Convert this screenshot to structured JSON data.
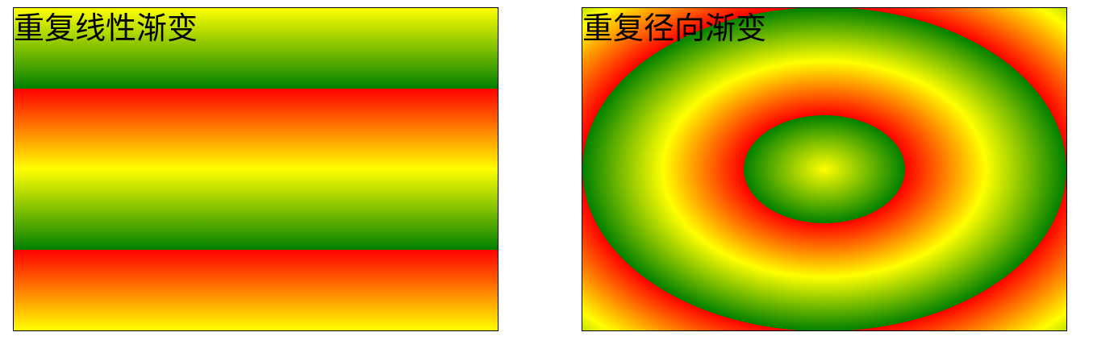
{
  "panels": {
    "linear": {
      "title": "重复线性渐变",
      "colors": [
        "#ffff00",
        "#008000",
        "#ff0000"
      ]
    },
    "radial": {
      "title": "重复径向渐变",
      "colors": [
        "#ffff00",
        "#008000",
        "#ff0000"
      ]
    }
  }
}
